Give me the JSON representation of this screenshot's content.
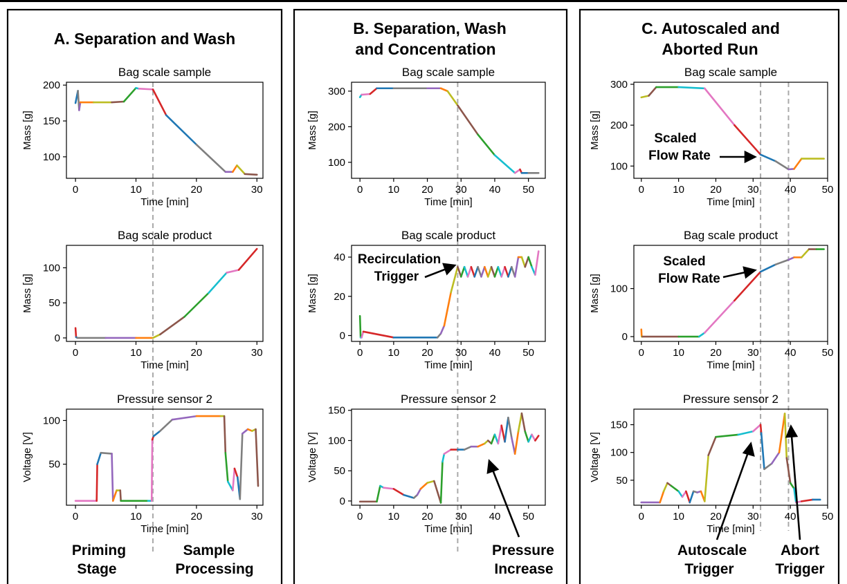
{
  "panels": [
    {
      "title": [
        "A.  Separation and Wash"
      ],
      "annotations": [
        "Priming",
        "Stage",
        "Sample",
        "Processing"
      ]
    },
    {
      "title": [
        "B. Separation, Wash",
        "and Concentration"
      ],
      "annotations": [
        "Recirculation",
        "Trigger",
        "Pressure",
        "Increase"
      ]
    },
    {
      "title": [
        "C. Autoscaled and",
        "Aborted Run"
      ],
      "annotations": [
        "Scaled",
        "Flow Rate",
        "Scaled",
        "Flow Rate",
        "Autoscale",
        "Trigger",
        "Abort",
        "Trigger"
      ]
    }
  ],
  "series_colors": [
    "#1f77b4",
    "#ff7f0e",
    "#2ca02c",
    "#d62728",
    "#9467bd",
    "#8c564b",
    "#e377c2",
    "#7f7f7f",
    "#bcbd22",
    "#17becf"
  ],
  "chart_data": [
    {
      "panel": "A",
      "type": "line",
      "title": "Bag scale sample",
      "xlabel": "Time [min]",
      "ylabel": "Mass [g]",
      "xlim": [
        -1.5,
        31
      ],
      "ylim": [
        70,
        204
      ],
      "xticks": [
        0,
        10,
        20,
        30
      ],
      "yticks": [
        100,
        150,
        200
      ],
      "vline": 12.8,
      "x": [
        0,
        0.4,
        0.6,
        0.8,
        3,
        6,
        8,
        10,
        10.5,
        12.8,
        15,
        20,
        24.8,
        26,
        26.7,
        28,
        30
      ],
      "y": [
        175,
        192,
        165,
        176,
        176,
        176,
        177,
        196,
        195,
        194,
        158,
        117,
        79,
        79,
        88,
        76,
        75
      ]
    },
    {
      "panel": "A",
      "type": "line",
      "title": "Bag scale product",
      "xlabel": "Time [min]",
      "ylabel": "Mass [g]",
      "xlim": [
        -1.5,
        31
      ],
      "ylim": [
        -5,
        132
      ],
      "xticks": [
        0,
        10,
        20,
        30
      ],
      "yticks": [
        0,
        50,
        100
      ],
      "vline": 12.8,
      "x": [
        0,
        0.1,
        0.3,
        5,
        10,
        12.8,
        14,
        18,
        22,
        25,
        27,
        30
      ],
      "y": [
        14,
        1,
        0,
        0,
        0,
        0,
        5,
        30,
        64,
        93,
        97,
        127
      ]
    },
    {
      "panel": "A",
      "type": "line",
      "title": "Pressure sensor 2",
      "xlabel": "Time [min]",
      "ylabel": "Voltage [V]",
      "xlim": [
        -1.5,
        31
      ],
      "ylim": [
        3,
        113
      ],
      "xticks": [
        0,
        10,
        20,
        30
      ],
      "yticks": [
        50,
        100
      ],
      "vline": 12.8,
      "x": [
        0,
        3.5,
        3.6,
        4.2,
        6,
        6.2,
        6.8,
        7.4,
        7.5,
        12,
        12.6,
        12.7,
        12.9,
        14,
        16,
        20,
        24,
        24.6,
        24.8,
        25.2,
        26,
        26.3,
        26.8,
        27.2,
        27.6,
        28.5,
        29.2,
        29.8,
        30.2
      ],
      "y": [
        8,
        8,
        50,
        63,
        62,
        8,
        20,
        20,
        8,
        8,
        8,
        78,
        82,
        88,
        101,
        105,
        105,
        105,
        63,
        30,
        20,
        45,
        35,
        10,
        85,
        90,
        88,
        90,
        25
      ]
    },
    {
      "panel": "B",
      "type": "line",
      "title": "Bag scale sample",
      "xlabel": "Time [min]",
      "ylabel": "Mass [g]",
      "xlim": [
        -2.5,
        55
      ],
      "ylim": [
        55,
        325
      ],
      "xticks": [
        0,
        10,
        20,
        30,
        40,
        50
      ],
      "yticks": [
        100,
        200,
        300
      ],
      "vline": 29,
      "x": [
        0,
        0.5,
        3,
        5,
        10,
        20,
        24,
        26,
        29,
        35,
        40,
        46,
        47.5,
        48,
        50,
        53
      ],
      "y": [
        283,
        290,
        292,
        308,
        308,
        308,
        308,
        300,
        260,
        178,
        120,
        70,
        80,
        70,
        70,
        70
      ]
    },
    {
      "panel": "B",
      "type": "line",
      "title": "Bag scale product",
      "xlabel": "Time [min]",
      "ylabel": "Mass [g]",
      "xlim": [
        -2.5,
        55
      ],
      "ylim": [
        -3,
        46
      ],
      "xticks": [
        0,
        10,
        20,
        30,
        40,
        50
      ],
      "yticks": [
        0,
        20,
        40
      ],
      "vline": 29,
      "x": [
        0,
        0.2,
        0.5,
        1,
        10,
        23,
        24,
        25,
        27,
        29,
        30,
        31,
        32,
        33,
        34,
        35,
        36,
        37,
        38,
        39,
        40,
        41,
        42,
        43,
        44,
        45,
        46,
        47,
        48,
        49,
        50,
        51,
        52,
        53
      ],
      "y": [
        10,
        -1,
        -1,
        2,
        -1,
        -1,
        1,
        5,
        22,
        35,
        30,
        35,
        30,
        35,
        30,
        35,
        30,
        35,
        30,
        35,
        30,
        35,
        30,
        35,
        30,
        35,
        30,
        40,
        40,
        35,
        40,
        35,
        31,
        43
      ]
    },
    {
      "panel": "B",
      "type": "line",
      "title": "Pressure sensor 2",
      "xlabel": "Time [min]",
      "ylabel": "Voltage [V]",
      "xlim": [
        -2.5,
        55
      ],
      "ylim": [
        -7,
        152
      ],
      "xticks": [
        0,
        10,
        20,
        30,
        40,
        50
      ],
      "yticks": [
        0,
        50,
        100,
        150
      ],
      "vline": 29,
      "x": [
        0,
        5,
        6,
        7,
        10,
        13,
        16,
        17,
        18,
        20,
        22,
        24,
        24.5,
        25,
        27,
        29,
        31,
        33,
        35,
        37,
        38,
        39,
        40,
        41,
        42,
        43,
        44,
        45,
        46,
        47,
        48,
        49,
        50,
        51,
        52,
        53
      ],
      "y": [
        -1,
        -1,
        25,
        22,
        20,
        10,
        5,
        10,
        20,
        30,
        33,
        -3,
        65,
        78,
        85,
        85,
        85,
        90,
        90,
        95,
        100,
        95,
        110,
        95,
        125,
        98,
        138,
        105,
        78,
        115,
        145,
        115,
        98,
        110,
        100,
        108
      ]
    },
    {
      "panel": "C",
      "type": "line",
      "title": "Bag scale sample",
      "xlabel": "Time [min]",
      "ylabel": "Mass [g]",
      "xlim": [
        -2,
        50
      ],
      "ylim": [
        70,
        305
      ],
      "xticks": [
        0,
        10,
        20,
        30,
        40,
        50
      ],
      "yticks": [
        100,
        200,
        300
      ],
      "vlines": [
        32,
        39.5
      ],
      "x": [
        0,
        2,
        4,
        10,
        17,
        25,
        32,
        36,
        39.5,
        41,
        43,
        49
      ],
      "y": [
        268,
        272,
        293,
        293,
        290,
        200,
        128,
        112,
        92,
        93,
        118,
        118
      ]
    },
    {
      "panel": "C",
      "type": "line",
      "title": "Bag scale product",
      "xlabel": "Time [min]",
      "ylabel": "Mass [g]",
      "xlim": [
        -2,
        50
      ],
      "ylim": [
        -10,
        190
      ],
      "xticks": [
        0,
        10,
        20,
        30,
        40,
        50
      ],
      "yticks": [
        0,
        100
      ],
      "vlines": [
        32,
        39.5
      ],
      "x": [
        0,
        0.1,
        0.3,
        10,
        15.5,
        17,
        25,
        32,
        36,
        39.5,
        41,
        43,
        45,
        47,
        49
      ],
      "y": [
        15,
        0,
        0,
        0,
        0,
        8,
        75,
        135,
        150,
        160,
        165,
        165,
        182,
        182,
        182
      ]
    },
    {
      "panel": "C",
      "type": "line",
      "title": "Pressure sensor 2",
      "xlabel": "Time [min]",
      "ylabel": "Voltage [V]",
      "xlim": [
        -2,
        50
      ],
      "ylim": [
        5,
        178
      ],
      "xticks": [
        0,
        10,
        20,
        30,
        40,
        50
      ],
      "yticks": [
        50,
        100,
        150
      ],
      "vline_list": [
        32,
        39.5
      ],
      "x": [
        0,
        5,
        6,
        7,
        8,
        10,
        11,
        12,
        13,
        14,
        15,
        16,
        17,
        18,
        20,
        26,
        30,
        32,
        32.2,
        33,
        35,
        37,
        38.5,
        39,
        40,
        41,
        41.5,
        43,
        46,
        48
      ],
      "y": [
        10,
        10,
        30,
        45,
        40,
        30,
        20,
        30,
        10,
        30,
        28,
        30,
        12,
        95,
        128,
        132,
        138,
        150,
        135,
        70,
        80,
        100,
        170,
        90,
        45,
        35,
        10,
        12,
        15,
        15
      ]
    }
  ]
}
